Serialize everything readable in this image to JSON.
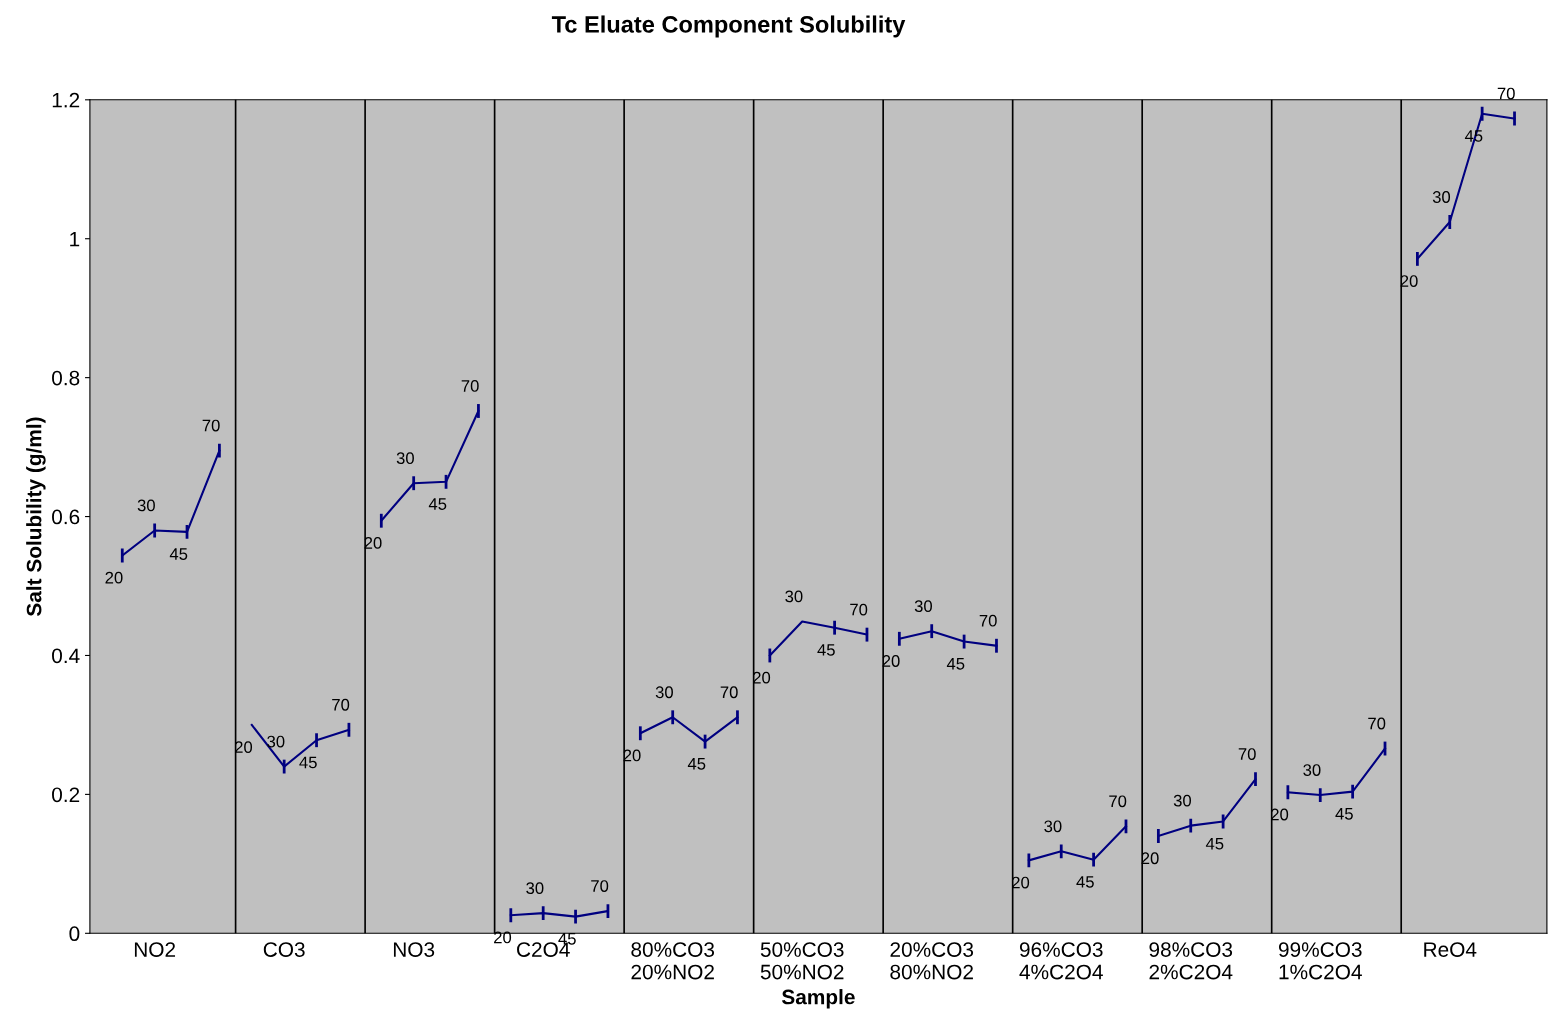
{
  "chart_data": {
    "type": "line",
    "title": "Tc Eluate Component Solubility",
    "xlabel": "Sample",
    "ylabel": "Salt Solubility (g/ml)",
    "categories": [
      null,
      "NO2",
      null,
      null,
      null,
      "CO3",
      null,
      null,
      null,
      "NO3",
      null,
      null,
      null,
      "C2O4",
      null,
      null,
      null,
      "80%CO3\n20%NO2",
      null,
      null,
      null,
      "50%CO3\n50%NO2",
      null,
      null,
      null,
      "20%CO3\n80%NO2",
      null,
      null,
      null,
      "96%CO3\n4%C2O4",
      null,
      null,
      null,
      "98%CO3\n2%C2O4",
      null,
      null,
      null,
      "99%CO3\n1%C2O4",
      null,
      null,
      null,
      "ReO4",
      null,
      null
    ],
    "series": [
      {
        "color": "#000080",
        "values": [
          0.544,
          0.58,
          0.578,
          0.695,
          null,
          null,
          null,
          null,
          null,
          null,
          null,
          null,
          null,
          null,
          null,
          null,
          null,
          null,
          null,
          null,
          null,
          null,
          null,
          null,
          null,
          null,
          null,
          null,
          null,
          null,
          null,
          null,
          null,
          null,
          null,
          null,
          null,
          null,
          null,
          null,
          null,
          null,
          null,
          null
        ],
        "errors": [
          0.01,
          0.01,
          0.01,
          0.01,
          null,
          null,
          null,
          null,
          null,
          null,
          null,
          null,
          null,
          null,
          null,
          null,
          null,
          null,
          null,
          null,
          null,
          null,
          null,
          null,
          null,
          null,
          null,
          null,
          null,
          null,
          null,
          null,
          null,
          null,
          null,
          null,
          null,
          null,
          null,
          null,
          null,
          null,
          null,
          null
        ]
      },
      {
        "color": "#000080",
        "values": [
          null,
          null,
          null,
          null,
          0.3,
          0.24,
          0.278,
          0.293,
          null,
          null,
          null,
          null,
          null,
          null,
          null,
          null,
          null,
          null,
          null,
          null,
          null,
          null,
          null,
          null,
          null,
          null,
          null,
          null,
          null,
          null,
          null,
          null,
          null,
          null,
          null,
          null,
          null,
          null,
          null,
          null,
          null,
          null,
          null,
          null
        ],
        "errors": [
          null,
          null,
          null,
          null,
          null,
          0.01,
          0.01,
          0.01,
          null,
          null,
          null,
          null,
          null,
          null,
          null,
          null,
          null,
          null,
          null,
          null,
          null,
          null,
          null,
          null,
          null,
          null,
          null,
          null,
          null,
          null,
          null,
          null,
          null,
          null,
          null,
          null,
          null,
          null,
          null,
          null,
          null,
          null,
          null,
          null
        ]
      },
      {
        "color": "#000080",
        "values": [
          null,
          null,
          null,
          null,
          null,
          null,
          null,
          null,
          0.594,
          0.648,
          0.65,
          0.752,
          null,
          null,
          null,
          null,
          null,
          null,
          null,
          null,
          null,
          null,
          null,
          null,
          null,
          null,
          null,
          null,
          null,
          null,
          null,
          null,
          null,
          null,
          null,
          null,
          null,
          null,
          null,
          null,
          null,
          null,
          null,
          null
        ],
        "errors": [
          null,
          null,
          null,
          null,
          null,
          null,
          null,
          null,
          0.01,
          0.01,
          0.01,
          0.01,
          null,
          null,
          null,
          null,
          null,
          null,
          null,
          null,
          null,
          null,
          null,
          null,
          null,
          null,
          null,
          null,
          null,
          null,
          null,
          null,
          null,
          null,
          null,
          null,
          null,
          null,
          null,
          null,
          null,
          null,
          null,
          null
        ]
      },
      {
        "color": "#000080",
        "values": [
          null,
          null,
          null,
          null,
          null,
          null,
          null,
          null,
          null,
          null,
          null,
          null,
          0.026,
          0.029,
          0.024,
          0.032,
          null,
          null,
          null,
          null,
          null,
          null,
          null,
          null,
          null,
          null,
          null,
          null,
          null,
          null,
          null,
          null,
          null,
          null,
          null,
          null,
          null,
          null,
          null,
          null,
          null,
          null,
          null,
          null
        ],
        "errors": [
          null,
          null,
          null,
          null,
          null,
          null,
          null,
          null,
          null,
          null,
          null,
          null,
          0.01,
          0.01,
          0.01,
          0.01,
          null,
          null,
          null,
          null,
          null,
          null,
          null,
          null,
          null,
          null,
          null,
          null,
          null,
          null,
          null,
          null,
          null,
          null,
          null,
          null,
          null,
          null,
          null,
          null,
          null,
          null,
          null,
          null
        ]
      },
      {
        "color": "#000080",
        "values": [
          null,
          null,
          null,
          null,
          null,
          null,
          null,
          null,
          null,
          null,
          null,
          null,
          null,
          null,
          null,
          null,
          0.288,
          0.311,
          0.276,
          0.311,
          null,
          null,
          null,
          null,
          null,
          null,
          null,
          null,
          null,
          null,
          null,
          null,
          null,
          null,
          null,
          null,
          null,
          null,
          null,
          null,
          null,
          null,
          null,
          null
        ],
        "errors": [
          null,
          null,
          null,
          null,
          null,
          null,
          null,
          null,
          null,
          null,
          null,
          null,
          null,
          null,
          null,
          null,
          0.01,
          0.01,
          0.01,
          0.01,
          null,
          null,
          null,
          null,
          null,
          null,
          null,
          null,
          null,
          null,
          null,
          null,
          null,
          null,
          null,
          null,
          null,
          null,
          null,
          null,
          null,
          null,
          null,
          null
        ]
      },
      {
        "color": "#000080",
        "values": [
          null,
          null,
          null,
          null,
          null,
          null,
          null,
          null,
          null,
          null,
          null,
          null,
          null,
          null,
          null,
          null,
          null,
          null,
          null,
          null,
          0.4,
          0.449,
          0.44,
          0.43,
          null,
          null,
          null,
          null,
          null,
          null,
          null,
          null,
          null,
          null,
          null,
          null,
          null,
          null,
          null,
          null,
          null,
          null,
          null,
          null
        ],
        "errors": [
          null,
          null,
          null,
          null,
          null,
          null,
          null,
          null,
          null,
          null,
          null,
          null,
          null,
          null,
          null,
          null,
          null,
          null,
          null,
          null,
          0.01,
          null,
          0.01,
          0.01,
          null,
          null,
          null,
          null,
          null,
          null,
          null,
          null,
          null,
          null,
          null,
          null,
          null,
          null,
          null,
          null,
          null,
          null,
          null,
          null
        ]
      },
      {
        "color": "#000080",
        "values": [
          null,
          null,
          null,
          null,
          null,
          null,
          null,
          null,
          null,
          null,
          null,
          null,
          null,
          null,
          null,
          null,
          null,
          null,
          null,
          null,
          null,
          null,
          null,
          null,
          0.424,
          0.435,
          0.42,
          0.414,
          null,
          null,
          null,
          null,
          null,
          null,
          null,
          null,
          null,
          null,
          null,
          null,
          null,
          null,
          null,
          null
        ],
        "errors": [
          null,
          null,
          null,
          null,
          null,
          null,
          null,
          null,
          null,
          null,
          null,
          null,
          null,
          null,
          null,
          null,
          null,
          null,
          null,
          null,
          null,
          null,
          null,
          null,
          0.01,
          0.01,
          0.01,
          0.01,
          null,
          null,
          null,
          null,
          null,
          null,
          null,
          null,
          null,
          null,
          null,
          null,
          null,
          null,
          null,
          null
        ]
      },
      {
        "color": "#000080",
        "values": [
          null,
          null,
          null,
          null,
          null,
          null,
          null,
          null,
          null,
          null,
          null,
          null,
          null,
          null,
          null,
          null,
          null,
          null,
          null,
          null,
          null,
          null,
          null,
          null,
          null,
          null,
          null,
          null,
          0.105,
          0.118,
          0.106,
          0.154,
          null,
          null,
          null,
          null,
          null,
          null,
          null,
          null,
          null,
          null,
          null,
          null
        ],
        "errors": [
          null,
          null,
          null,
          null,
          null,
          null,
          null,
          null,
          null,
          null,
          null,
          null,
          null,
          null,
          null,
          null,
          null,
          null,
          null,
          null,
          null,
          null,
          null,
          null,
          null,
          null,
          null,
          null,
          0.01,
          0.01,
          0.01,
          0.01,
          null,
          null,
          null,
          null,
          null,
          null,
          null,
          null,
          null,
          null,
          null,
          null
        ]
      },
      {
        "color": "#000080",
        "values": [
          null,
          null,
          null,
          null,
          null,
          null,
          null,
          null,
          null,
          null,
          null,
          null,
          null,
          null,
          null,
          null,
          null,
          null,
          null,
          null,
          null,
          null,
          null,
          null,
          null,
          null,
          null,
          null,
          null,
          null,
          null,
          null,
          0.14,
          0.155,
          0.161,
          0.222,
          null,
          null,
          null,
          null,
          null,
          null,
          null,
          null
        ],
        "errors": [
          null,
          null,
          null,
          null,
          null,
          null,
          null,
          null,
          null,
          null,
          null,
          null,
          null,
          null,
          null,
          null,
          null,
          null,
          null,
          null,
          null,
          null,
          null,
          null,
          null,
          null,
          null,
          null,
          null,
          null,
          null,
          null,
          0.01,
          0.01,
          0.01,
          0.01,
          null,
          null,
          null,
          null,
          null,
          null,
          null,
          null
        ]
      },
      {
        "color": "#000080",
        "values": [
          null,
          null,
          null,
          null,
          null,
          null,
          null,
          null,
          null,
          null,
          null,
          null,
          null,
          null,
          null,
          null,
          null,
          null,
          null,
          null,
          null,
          null,
          null,
          null,
          null,
          null,
          null,
          null,
          null,
          null,
          null,
          null,
          null,
          null,
          null,
          null,
          0.203,
          0.199,
          0.204,
          0.266,
          null,
          null,
          null,
          null
        ],
        "errors": [
          null,
          null,
          null,
          null,
          null,
          null,
          null,
          null,
          null,
          null,
          null,
          null,
          null,
          null,
          null,
          null,
          null,
          null,
          null,
          null,
          null,
          null,
          null,
          null,
          null,
          null,
          null,
          null,
          null,
          null,
          null,
          null,
          null,
          null,
          null,
          null,
          0.01,
          0.01,
          0.01,
          0.01,
          null,
          null,
          null,
          null
        ]
      },
      {
        "color": "#000080",
        "values": [
          null,
          null,
          null,
          null,
          null,
          null,
          null,
          null,
          null,
          null,
          null,
          null,
          null,
          null,
          null,
          null,
          null,
          null,
          null,
          null,
          null,
          null,
          null,
          null,
          null,
          null,
          null,
          null,
          null,
          null,
          null,
          null,
          null,
          null,
          null,
          null,
          null,
          null,
          null,
          null,
          0.971,
          1.024,
          1.18,
          1.173
        ],
        "errors": [
          null,
          null,
          null,
          null,
          null,
          null,
          null,
          null,
          null,
          null,
          null,
          null,
          null,
          null,
          null,
          null,
          null,
          null,
          null,
          null,
          null,
          null,
          null,
          null,
          null,
          null,
          null,
          null,
          null,
          null,
          null,
          null,
          null,
          null,
          null,
          null,
          null,
          null,
          null,
          null,
          0.01,
          0.01,
          0.01,
          0.01
        ]
      }
    ],
    "annotations": [
      "20",
      "30",
      "45",
      "70",
      "20",
      "30",
      "45",
      "70",
      "20",
      "30",
      "45",
      "70",
      "20",
      "30",
      "45",
      "70",
      "20",
      "30",
      "45",
      "70",
      "20",
      "30",
      "45",
      "70",
      "20",
      "30",
      "45",
      "70",
      "20",
      "30",
      "45",
      "70",
      "20",
      "30",
      "45",
      "70",
      "20",
      "30",
      "45",
      "70",
      "20",
      "30",
      "45",
      "70"
    ],
    "ylim": [
      0,
      1.2
    ],
    "yticks": [
      0,
      0.2,
      0.4,
      0.6,
      0.8,
      1,
      1.2
    ],
    "grid": "x",
    "legend": false,
    "marker": "none",
    "line_style": "solid"
  }
}
